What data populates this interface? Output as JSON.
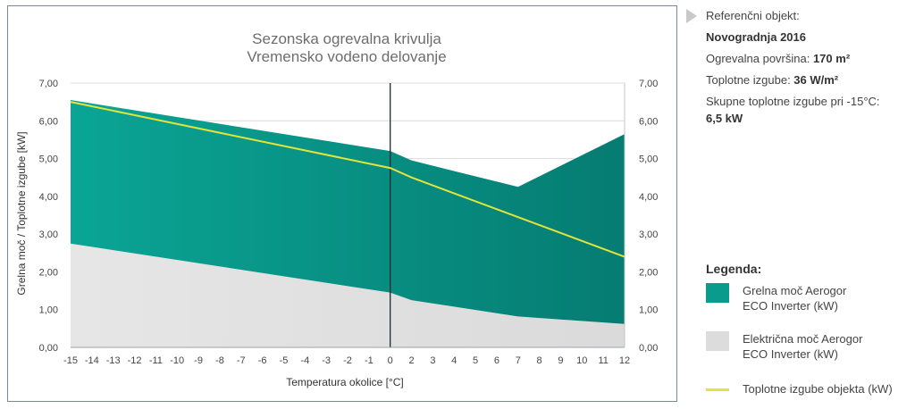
{
  "chart_data": {
    "type": "area",
    "title_line1": "Sezonska ogrevalna krivulja",
    "title_line2": "Vremensko vodeno delovanje",
    "xlabel": "Temperatura okolice [°C]",
    "ylabel": "Grelna moč / Toplotne izgube [kW]",
    "x_ticks": [
      -15,
      -14,
      -13,
      -12,
      -11,
      -10,
      -9,
      -8,
      -7,
      -6,
      -5,
      -4,
      -3,
      -2,
      -1,
      0,
      2,
      3,
      4,
      5,
      6,
      7,
      8,
      9,
      10,
      11,
      12
    ],
    "y_ticks": [
      "0,00",
      "1,00",
      "2,00",
      "3,00",
      "4,00",
      "5,00",
      "6,00",
      "7,00"
    ],
    "ylim": [
      0,
      7
    ],
    "reference_line_x": 0,
    "series": [
      {
        "name": "Grelna moč Aerogor ECO Inverter (kW)",
        "color": "#0a9b8c",
        "x": [
          -15,
          0,
          2,
          7,
          12
        ],
        "y": [
          6.55,
          5.2,
          4.95,
          4.25,
          5.65
        ]
      },
      {
        "name": "Električna moč Aerogor ECO Inverter (kW)",
        "color": "#e3e3e3",
        "x": [
          -15,
          0,
          2,
          7,
          12
        ],
        "y": [
          2.75,
          1.45,
          1.25,
          0.82,
          0.62
        ]
      },
      {
        "name": "Toplotne izgube objekta (kW)",
        "color": "#e2e43a",
        "x": [
          -15,
          0,
          2,
          12
        ],
        "y": [
          6.5,
          4.75,
          4.5,
          2.4
        ]
      }
    ]
  },
  "info": {
    "heading": "Referenčni objekt:",
    "name": "Novogradnja 2016",
    "area_label": "Ogrevalna površina: ",
    "area_value": "170 m²",
    "loss_label": "Toplotne izgube: ",
    "loss_value": "36 W/m²",
    "total_label": "Skupne toplotne izgube pri -15°C:",
    "total_value": "6,5 kW"
  },
  "legend": {
    "title": "Legenda:",
    "items": [
      {
        "label1": "Grelna moč Aerogor",
        "label2": "ECO Inverter (kW)",
        "color": "#0a9b8c"
      },
      {
        "label1": "Električna moč Aerogor",
        "label2": "ECO Inverter (kW)",
        "color": "#dcdcdc"
      },
      {
        "label1": "Toplotne izgube objekta (kW)",
        "color": "#e2e43a"
      }
    ]
  }
}
